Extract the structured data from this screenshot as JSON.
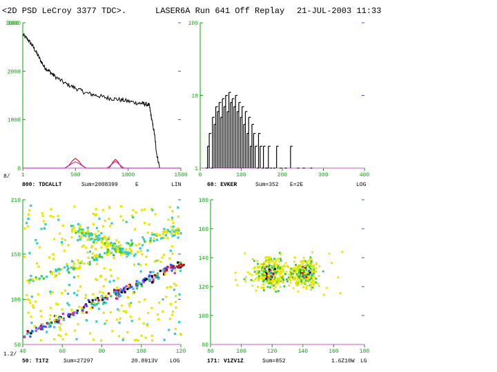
{
  "header": {
    "left_title": "<2D PSD LeCroy 3377 TDC>.",
    "mid_title": "LASER6A Run 641 Off Replay",
    "date": "21-JUL-2003 11:33"
  },
  "colors": {
    "axis_tick": "#00aa00",
    "axis_line": "#cc55cc",
    "hist_line": "#000000",
    "secondary_line": "#cc0000",
    "secondary_line2": "#cc00cc",
    "footer_text": "#000000",
    "scatter_palette": [
      "#e6e600",
      "#33cccc",
      "#33cc33",
      "#3355ff",
      "#cc0000",
      "#cc33cc",
      "#000000"
    ]
  },
  "chart_data": [
    {
      "id": "p1",
      "type": "line",
      "xlim": [
        0,
        1500
      ],
      "ylim": [
        0,
        3000
      ],
      "yscale": "linear",
      "xticks": [
        1,
        500,
        1000,
        1500
      ],
      "yticks": [
        0,
        1000,
        2000,
        3000
      ],
      "ytick_labels": [
        "0",
        "1000",
        "2000",
        "3000"
      ],
      "top_label": "3000",
      "corner_label": "8/",
      "footer": {
        "name": "800: TDCALLT",
        "sum": "Sum=2008399",
        "flag": "E",
        "scale": "LIN"
      },
      "series": [
        {
          "name": "main",
          "color": "#000000",
          "x": [
            1,
            50,
            100,
            150,
            200,
            250,
            300,
            400,
            500,
            600,
            700,
            800,
            900,
            1000,
            1100,
            1150,
            1200,
            1220,
            1250,
            1270,
            1300,
            1320,
            1500
          ],
          "y": [
            2750,
            2650,
            2500,
            2300,
            2100,
            2000,
            1900,
            1750,
            1650,
            1550,
            1500,
            1450,
            1420,
            1380,
            1340,
            1330,
            1300,
            1050,
            700,
            300,
            0,
            0,
            0
          ]
        },
        {
          "name": "red bumps",
          "color": "#cc0000",
          "x": [
            400,
            440,
            470,
            500,
            530,
            560,
            600,
            700,
            820,
            840,
            860,
            880,
            900,
            920,
            940,
            980,
            1500
          ],
          "y": [
            0,
            60,
            150,
            200,
            150,
            60,
            0,
            0,
            0,
            70,
            140,
            180,
            140,
            70,
            0,
            0,
            0
          ]
        },
        {
          "name": "magenta bumps",
          "color": "#cc00cc",
          "x": [
            1,
            400,
            430,
            470,
            500,
            530,
            570,
            600,
            800,
            830,
            860,
            880,
            900,
            930,
            960,
            1000,
            1500
          ],
          "y": [
            0,
            0,
            40,
            100,
            130,
            100,
            40,
            0,
            0,
            50,
            110,
            140,
            110,
            50,
            0,
            0,
            0
          ]
        }
      ]
    },
    {
      "id": "p2",
      "type": "bar",
      "xlim": [
        0,
        400
      ],
      "ylim": [
        1,
        100
      ],
      "yscale": "log",
      "xticks": [
        0,
        100,
        200,
        300,
        400
      ],
      "yticks": [
        1,
        10,
        100
      ],
      "ytick_labels": [
        "1",
        "10",
        "100"
      ],
      "footer": {
        "name": "60: EVKER",
        "sum": "Sum=352",
        "flag": "E=2E",
        "scale": "LOG"
      },
      "x": [
        14,
        18,
        22,
        26,
        30,
        34,
        38,
        42,
        46,
        50,
        54,
        58,
        62,
        66,
        70,
        74,
        78,
        82,
        86,
        90,
        94,
        98,
        102,
        106,
        110,
        114,
        118,
        122,
        126,
        130,
        134,
        138,
        142,
        146,
        150,
        154,
        158,
        162,
        166,
        170,
        178,
        186,
        194,
        206,
        220,
        236,
        250,
        268
      ],
      "values": [
        1,
        2,
        3,
        1,
        5,
        4,
        7,
        6,
        8,
        5,
        9,
        7,
        10,
        6,
        11,
        8,
        9,
        7,
        10,
        6,
        8,
        5,
        7,
        4,
        6,
        3,
        5,
        2,
        4,
        3,
        2,
        1,
        3,
        2,
        1,
        2,
        1,
        1,
        2,
        1,
        1,
        2,
        1,
        1,
        2,
        1,
        1,
        1
      ]
    },
    {
      "id": "p3",
      "type": "heatmap",
      "xlim": [
        40,
        120
      ],
      "ylim": [
        50,
        210
      ],
      "xticks": [
        40,
        60,
        80,
        100,
        120
      ],
      "yticks": [
        50,
        100,
        150,
        210
      ],
      "ytick_labels": [
        "50",
        "100",
        "150",
        "210"
      ],
      "corner_label": "1.2/",
      "footer": {
        "name": "50: T1T2",
        "sum": "Sum=27297",
        "flag": "20.8913V",
        "scale": "LOG"
      },
      "bands": [
        {
          "from": [
            41,
            62
          ],
          "to": [
            120,
            140
          ],
          "level": "high"
        },
        {
          "from": [
            41,
            120
          ],
          "to": [
            120,
            180
          ],
          "level": "mid"
        },
        {
          "from": [
            65,
            180
          ],
          "to": [
            95,
            150
          ],
          "level": "mid"
        }
      ]
    },
    {
      "id": "p4",
      "type": "heatmap",
      "xlim": [
        80,
        180
      ],
      "ylim": [
        80,
        180
      ],
      "xticks": [
        80,
        100,
        120,
        140,
        160,
        180
      ],
      "yticks": [
        80,
        100,
        120,
        140,
        160,
        180
      ],
      "ytick_labels": [
        "80",
        "100",
        "120",
        "140",
        "160",
        "180"
      ],
      "footer": {
        "name": "171: V1ZV1Z",
        "sum": "Sum=852",
        "flag": "1.6Z10W",
        "scale": "LG"
      },
      "clusters": [
        {
          "center": [
            118,
            130
          ],
          "spread": [
            10,
            10
          ]
        },
        {
          "center": [
            140,
            130
          ],
          "spread": [
            9,
            9
          ]
        }
      ]
    }
  ]
}
